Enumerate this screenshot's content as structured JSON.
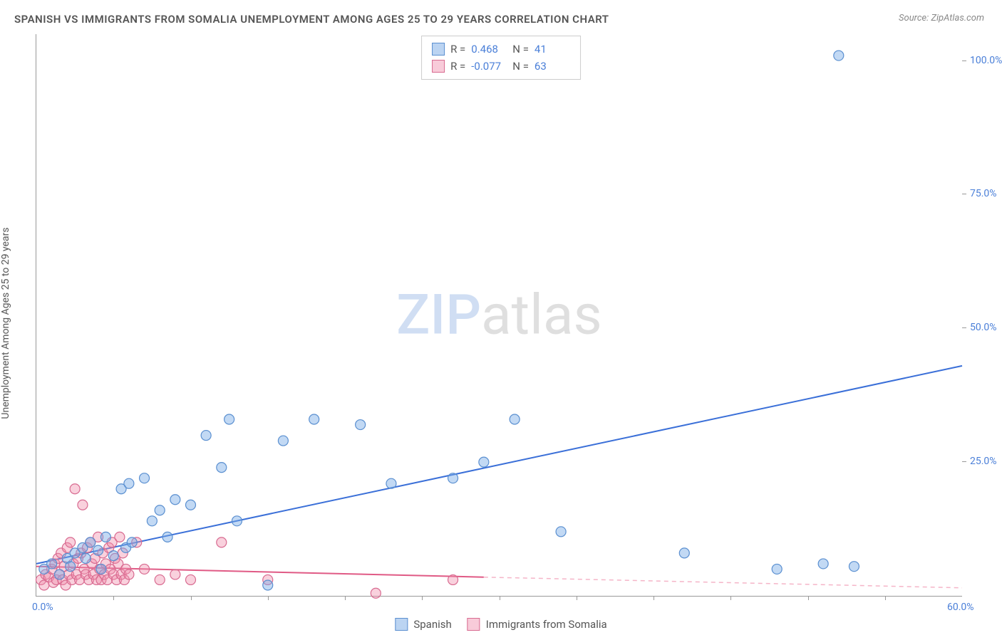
{
  "title": "SPANISH VS IMMIGRANTS FROM SOMALIA UNEMPLOYMENT AMONG AGES 25 TO 29 YEARS CORRELATION CHART",
  "source_label": "Source:",
  "source_name": "ZipAtlas.com",
  "y_axis_label": "Unemployment Among Ages 25 to 29 years",
  "watermark_a": "ZIP",
  "watermark_b": "atlas",
  "chart": {
    "type": "scatter",
    "xlim": [
      0,
      60
    ],
    "ylim": [
      0,
      105
    ],
    "x_ticks": [
      0,
      60
    ],
    "x_tick_labels": [
      "0.0%",
      "60.0%"
    ],
    "x_minor_ticks": [
      5,
      10,
      15,
      20,
      25,
      30,
      35,
      40,
      45,
      50,
      55
    ],
    "y_ticks": [
      25,
      50,
      75,
      100
    ],
    "y_tick_labels": [
      "25.0%",
      "50.0%",
      "75.0%",
      "100.0%"
    ],
    "y_minor_ticks": [],
    "background_color": "#ffffff",
    "axis_color": "#999999",
    "tick_label_color": "#4a7fd8",
    "marker_radius": 7,
    "marker_stroke_width": 1.2,
    "trend_line_width": 2
  },
  "series": {
    "spanish": {
      "label": "Spanish",
      "R": "0.468",
      "N": "41",
      "fill": "rgba(120,170,230,0.45)",
      "stroke": "#5a8fd0",
      "points": [
        [
          0.5,
          5
        ],
        [
          1,
          6
        ],
        [
          1.5,
          4
        ],
        [
          2,
          7
        ],
        [
          2.2,
          5.5
        ],
        [
          2.5,
          8
        ],
        [
          3,
          9
        ],
        [
          3.2,
          7
        ],
        [
          3.5,
          10
        ],
        [
          4,
          8.5
        ],
        [
          4.2,
          5
        ],
        [
          4.5,
          11
        ],
        [
          5,
          7.5
        ],
        [
          5.5,
          20
        ],
        [
          5.8,
          9
        ],
        [
          6,
          21
        ],
        [
          6.2,
          10
        ],
        [
          7,
          22
        ],
        [
          7.5,
          14
        ],
        [
          8,
          16
        ],
        [
          8.5,
          11
        ],
        [
          9,
          18
        ],
        [
          10,
          17
        ],
        [
          11,
          30
        ],
        [
          12,
          24
        ],
        [
          12.5,
          33
        ],
        [
          13,
          14
        ],
        [
          15,
          2
        ],
        [
          16,
          29
        ],
        [
          18,
          33
        ],
        [
          21,
          32
        ],
        [
          23,
          21
        ],
        [
          27,
          22
        ],
        [
          29,
          25
        ],
        [
          31,
          33
        ],
        [
          34,
          12
        ],
        [
          42,
          8
        ],
        [
          48,
          5
        ],
        [
          51,
          6
        ],
        [
          52,
          101
        ],
        [
          53,
          5.5
        ]
      ],
      "trend": {
        "x1": 0,
        "y1": 6,
        "x2": 60,
        "y2": 43,
        "color": "#3a6fd8"
      }
    },
    "somalia": {
      "label": "Immigrants from Somalia",
      "R": "-0.077",
      "N": "63",
      "fill": "rgba(240,140,170,0.4)",
      "stroke": "#d86a90",
      "points": [
        [
          0.3,
          3
        ],
        [
          0.5,
          2
        ],
        [
          0.6,
          4
        ],
        [
          0.8,
          3.5
        ],
        [
          1,
          5
        ],
        [
          1.1,
          2.5
        ],
        [
          1.2,
          6
        ],
        [
          1.3,
          3
        ],
        [
          1.4,
          7
        ],
        [
          1.5,
          4
        ],
        [
          1.6,
          8
        ],
        [
          1.7,
          3
        ],
        [
          1.8,
          5.5
        ],
        [
          1.9,
          2
        ],
        [
          2,
          9
        ],
        [
          2.1,
          4
        ],
        [
          2.2,
          10
        ],
        [
          2.3,
          3
        ],
        [
          2.4,
          6
        ],
        [
          2.5,
          20
        ],
        [
          2.6,
          4
        ],
        [
          2.7,
          7
        ],
        [
          2.8,
          3
        ],
        [
          2.9,
          8
        ],
        [
          3,
          17
        ],
        [
          3.1,
          5
        ],
        [
          3.2,
          4
        ],
        [
          3.3,
          9
        ],
        [
          3.4,
          3
        ],
        [
          3.5,
          10
        ],
        [
          3.6,
          6
        ],
        [
          3.7,
          4
        ],
        [
          3.8,
          7
        ],
        [
          3.9,
          3
        ],
        [
          4,
          11
        ],
        [
          4.1,
          5
        ],
        [
          4.2,
          3
        ],
        [
          4.3,
          8
        ],
        [
          4.4,
          4
        ],
        [
          4.5,
          6
        ],
        [
          4.6,
          3
        ],
        [
          4.7,
          9
        ],
        [
          4.8,
          5
        ],
        [
          4.9,
          10
        ],
        [
          5,
          4
        ],
        [
          5.1,
          7
        ],
        [
          5.2,
          3
        ],
        [
          5.3,
          6
        ],
        [
          5.4,
          11
        ],
        [
          5.5,
          4
        ],
        [
          5.6,
          8
        ],
        [
          5.7,
          3
        ],
        [
          5.8,
          5
        ],
        [
          6,
          4
        ],
        [
          6.5,
          10
        ],
        [
          7,
          5
        ],
        [
          8,
          3
        ],
        [
          9,
          4
        ],
        [
          10,
          3
        ],
        [
          12,
          10
        ],
        [
          15,
          3
        ],
        [
          22,
          0.5
        ],
        [
          27,
          3
        ]
      ],
      "trend_solid": {
        "x1": 0,
        "y1": 5.5,
        "x2": 29,
        "y2": 3.5,
        "color": "#e05a85"
      },
      "trend_dash": {
        "x1": 29,
        "y1": 3.5,
        "x2": 60,
        "y2": 1.5,
        "color": "#f5b5c8"
      }
    }
  },
  "legend_top": {
    "r_label": "R =",
    "n_label": "N ="
  }
}
